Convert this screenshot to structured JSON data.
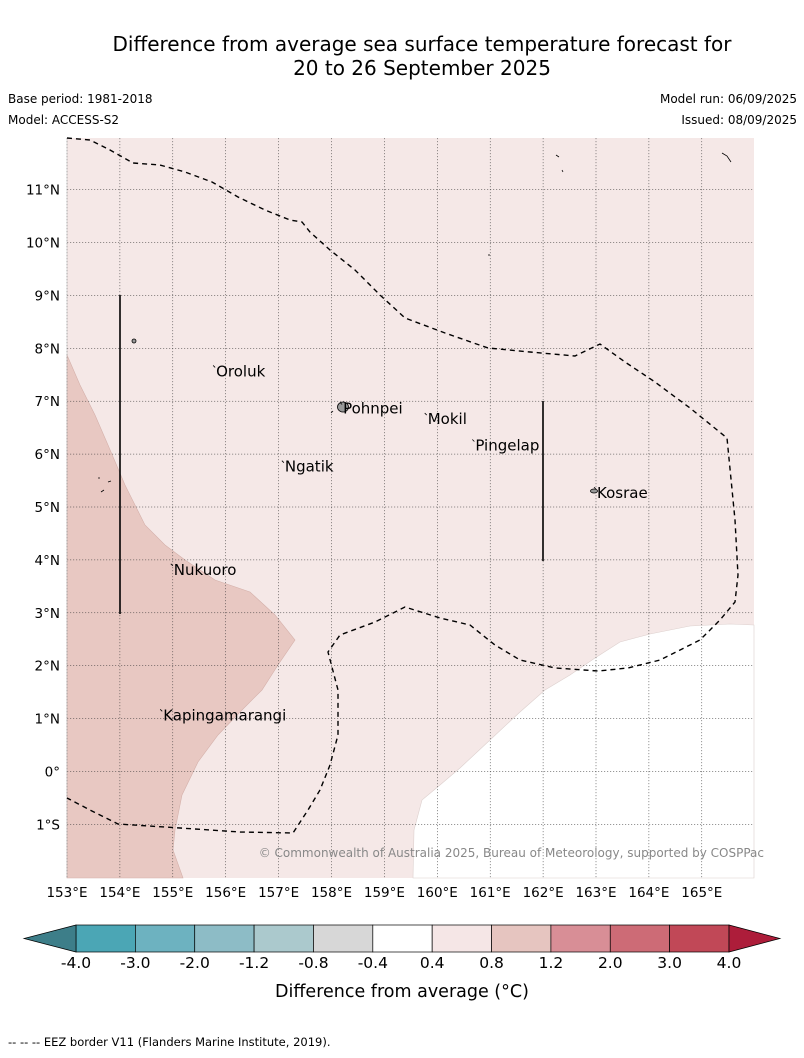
{
  "title": {
    "line1": "Difference from average sea surface temperature forecast for",
    "line2": "20 to 26 September 2025"
  },
  "meta": {
    "base_period": "Base period: 1981-2018",
    "model": "Model: ACCESS-S2",
    "model_run": "Model run: 06/09/2025",
    "issued": "Issued: 08/09/2025"
  },
  "map": {
    "lon_labels": [
      "153°E",
      "154°E",
      "155°E",
      "156°E",
      "157°E",
      "158°E",
      "159°E",
      "160°E",
      "161°E",
      "162°E",
      "163°E",
      "164°E",
      "165°E"
    ],
    "lat_labels": [
      "11°N",
      "10°N",
      "9°N",
      "8°N",
      "7°N",
      "6°N",
      "5°N",
      "4°N",
      "3°N",
      "2°N",
      "1°N",
      "0°",
      "1°S"
    ],
    "places": [
      {
        "name": "Oroluk",
        "lon": 155.8,
        "lat": 7.6
      },
      {
        "name": "Pohnpei",
        "lon": 158.2,
        "lat": 6.9
      },
      {
        "name": "Mokil",
        "lon": 159.8,
        "lat": 6.7
      },
      {
        "name": "Pingelap",
        "lon": 160.7,
        "lat": 6.2
      },
      {
        "name": "Ngatik",
        "lon": 157.1,
        "lat": 5.8
      },
      {
        "name": "Kosrae",
        "lon": 163.0,
        "lat": 5.3
      },
      {
        "name": "Nukuoro",
        "lon": 155.0,
        "lat": 3.85
      },
      {
        "name": "Kapingamarangi",
        "lon": 154.8,
        "lat": 1.1
      }
    ],
    "copyright": "© Commonwealth of Australia 2025, Bureau of Meteorology, supported by COSPPac"
  },
  "colorbar": {
    "tick_labels": [
      "-4.0",
      "-3.0",
      "-2.0",
      "-1.2",
      "-0.8",
      "-0.4",
      "0.4",
      "0.8",
      "1.2",
      "2.0",
      "3.0",
      "4.0"
    ],
    "colors": [
      "#4ba6b5",
      "#6db2c0",
      "#8dbcc6",
      "#abc9cd",
      "#d7d7d7",
      "#ffffff",
      "#f5e6e6",
      "#e6c5c0",
      "#d88e96",
      "#cd6b76",
      "#c14857"
    ],
    "under_color": "#3d7e89",
    "over_color": "#ad1d3a",
    "label": "Difference from average (",
    "label_unit": "°C",
    "label_close": ")"
  },
  "footer": "--  --  -- EEZ border V11 (Flanders Marine Institute, 2019)."
}
